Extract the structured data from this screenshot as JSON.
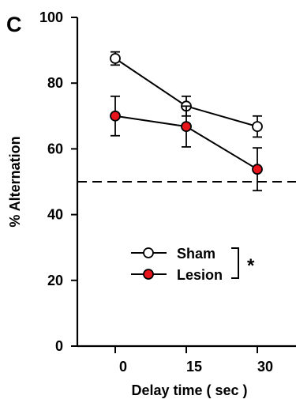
{
  "chart_data": {
    "type": "line",
    "panel_label": "C",
    "xlabel": "Delay time ( sec )",
    "ylabel": "% Alternation",
    "x_categories": [
      "0",
      "15",
      "30"
    ],
    "x": [
      0,
      15,
      30
    ],
    "ylim": [
      0,
      100
    ],
    "yticks": [
      "0",
      "20",
      "40",
      "60",
      "80",
      "100"
    ],
    "reference_line": {
      "y": 50,
      "style": "dashed"
    },
    "series": [
      {
        "name": "Sham",
        "marker_fill": "#ffffff",
        "values": [
          87.5,
          73,
          66.8
        ],
        "errors": [
          2,
          3,
          3.2
        ]
      },
      {
        "name": "Lesion",
        "marker_fill": "#e8141b",
        "values": [
          70,
          66.8,
          53.8
        ],
        "errors": [
          6,
          6.2,
          6.5
        ]
      }
    ],
    "significance": "*",
    "grid": false,
    "legend_position": "lower-center"
  }
}
